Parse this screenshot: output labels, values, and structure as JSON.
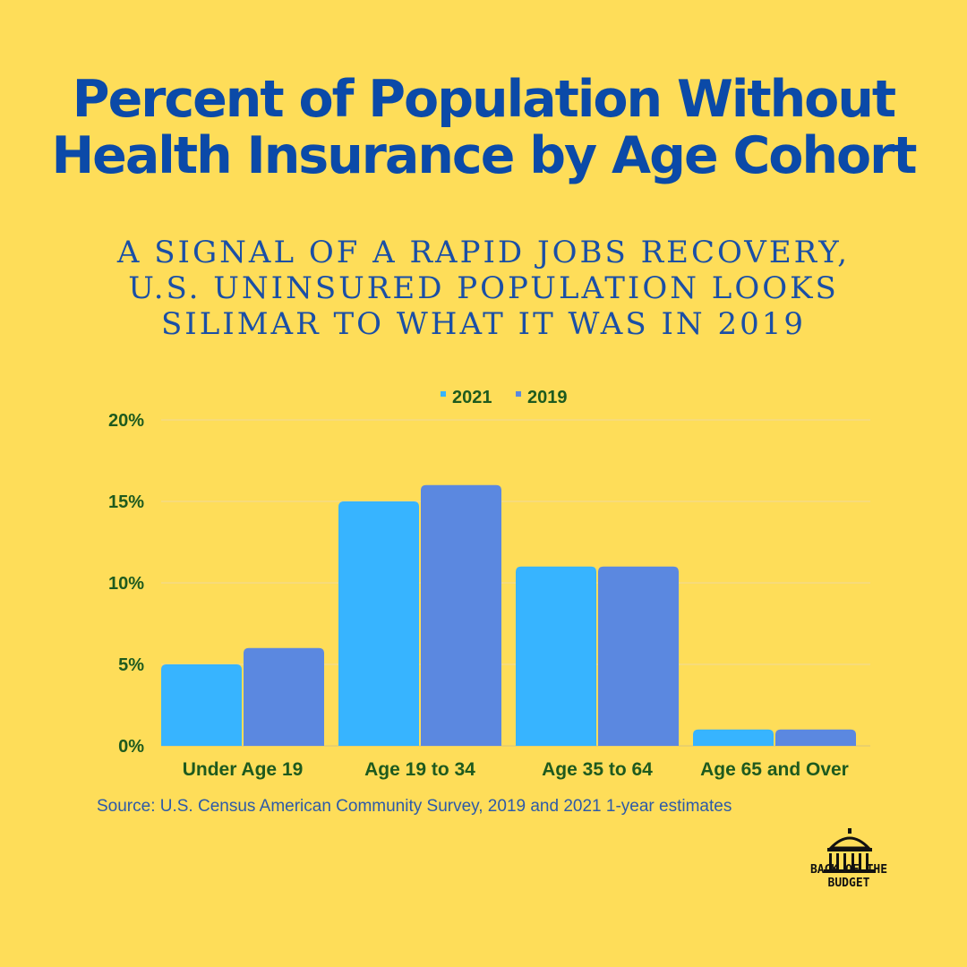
{
  "title_lines": [
    "Percent of Population Without",
    "Health Insurance by Age Cohort"
  ],
  "subtitle_lines": [
    "A SIGNAL OF A RAPID JOBS RECOVERY,",
    "U.S. UNINSURED POPULATION LOOKS",
    "SILIMAR TO WHAT IT WAS IN 2019"
  ],
  "source": "Source: U.S. Census American Community Survey, 2019 and 2021 1-year estimates",
  "logo": {
    "lines": [
      "BACK OF THE",
      "BUDGET"
    ],
    "icon": "capitol-dome-icon"
  },
  "colors": {
    "background": "#fedd59",
    "title": "#0b4aa8",
    "label": "#1e5a1e"
  },
  "chart_data": {
    "type": "bar",
    "categories": [
      "Under Age 19",
      "Age 19 to 34",
      "Age 35 to 64",
      "Age 65 and Over"
    ],
    "series": [
      {
        "name": "2021",
        "values": [
          5,
          15,
          11,
          1
        ],
        "color": "#37b4ff"
      },
      {
        "name": "2019",
        "values": [
          6,
          16,
          11,
          1
        ],
        "color": "#5b88e0"
      }
    ],
    "yticks": [
      "0%",
      "5%",
      "10%",
      "15%",
      "20%"
    ],
    "ytick_values": [
      0,
      5,
      10,
      15,
      20
    ],
    "ylim": [
      0,
      20
    ],
    "legend_position": "top-center",
    "grid": true
  }
}
